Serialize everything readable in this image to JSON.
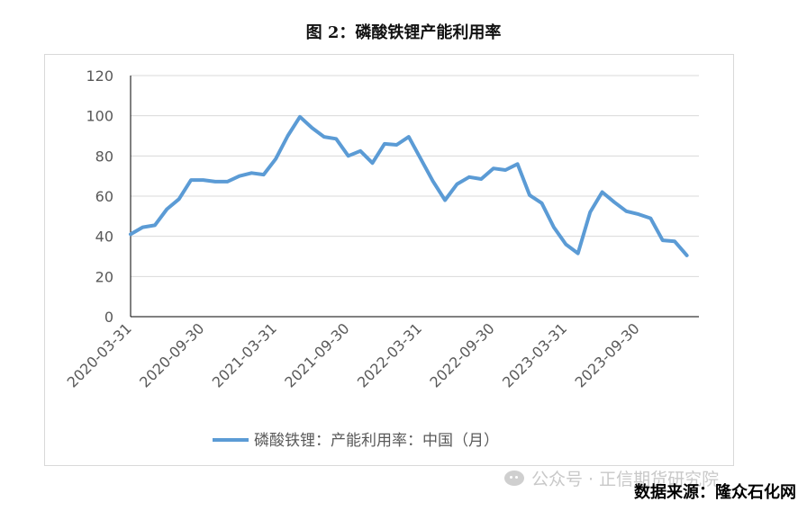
{
  "figure": {
    "title": "图 2：磷酸铁锂产能利用率",
    "source": "数据来源：隆众石化网",
    "watermark": "公众号 · 正信期货研究院"
  },
  "chart_data": {
    "type": "line",
    "ylim": [
      0,
      120
    ],
    "yticks": [
      0,
      20,
      40,
      60,
      80,
      100,
      120
    ],
    "grid": true,
    "legend_position": "bottom",
    "line_color": "#5b9bd5",
    "x_tick_labels": [
      "2020-03-31",
      "2020-09-30",
      "2021-03-31",
      "2021-09-30",
      "2022-03-31",
      "2022-09-30",
      "2023-03-31",
      "2023-09-30"
    ],
    "x": [
      "2020-03-31",
      "2020-04-30",
      "2020-05-31",
      "2020-06-30",
      "2020-07-31",
      "2020-08-31",
      "2020-09-30",
      "2020-10-31",
      "2020-11-30",
      "2020-12-31",
      "2021-01-31",
      "2021-02-28",
      "2021-03-31",
      "2021-04-30",
      "2021-05-31",
      "2021-06-30",
      "2021-07-31",
      "2021-08-31",
      "2021-09-30",
      "2021-10-31",
      "2021-11-30",
      "2021-12-31",
      "2022-01-31",
      "2022-02-28",
      "2022-03-31",
      "2022-04-30",
      "2022-05-31",
      "2022-06-30",
      "2022-07-31",
      "2022-08-31",
      "2022-09-30",
      "2022-10-31",
      "2022-11-30",
      "2022-12-31",
      "2023-01-31",
      "2023-02-28",
      "2023-03-31",
      "2023-04-30",
      "2023-05-31",
      "2023-06-30",
      "2023-07-31",
      "2023-08-31",
      "2023-09-30",
      "2023-10-31",
      "2023-11-30",
      "2023-12-31",
      "2024-01-31"
    ],
    "series": [
      {
        "name": "磷酸铁锂：产能利用率：中国（月）",
        "values": [
          41,
          44.5,
          45.5,
          53.5,
          58.5,
          68,
          68,
          67.2,
          67.2,
          70,
          71.5,
          70.7,
          78.5,
          90,
          99.5,
          94,
          89.5,
          88.5,
          80,
          82.5,
          76.5,
          86,
          85.5,
          89.5,
          78.5,
          67.5,
          58,
          66,
          69.5,
          68.5,
          73.8,
          73,
          76,
          60.5,
          56.5,
          44.5,
          36,
          31.5,
          52,
          62,
          57,
          52.5,
          51,
          49,
          38,
          37.5,
          30.5
        ]
      }
    ]
  }
}
